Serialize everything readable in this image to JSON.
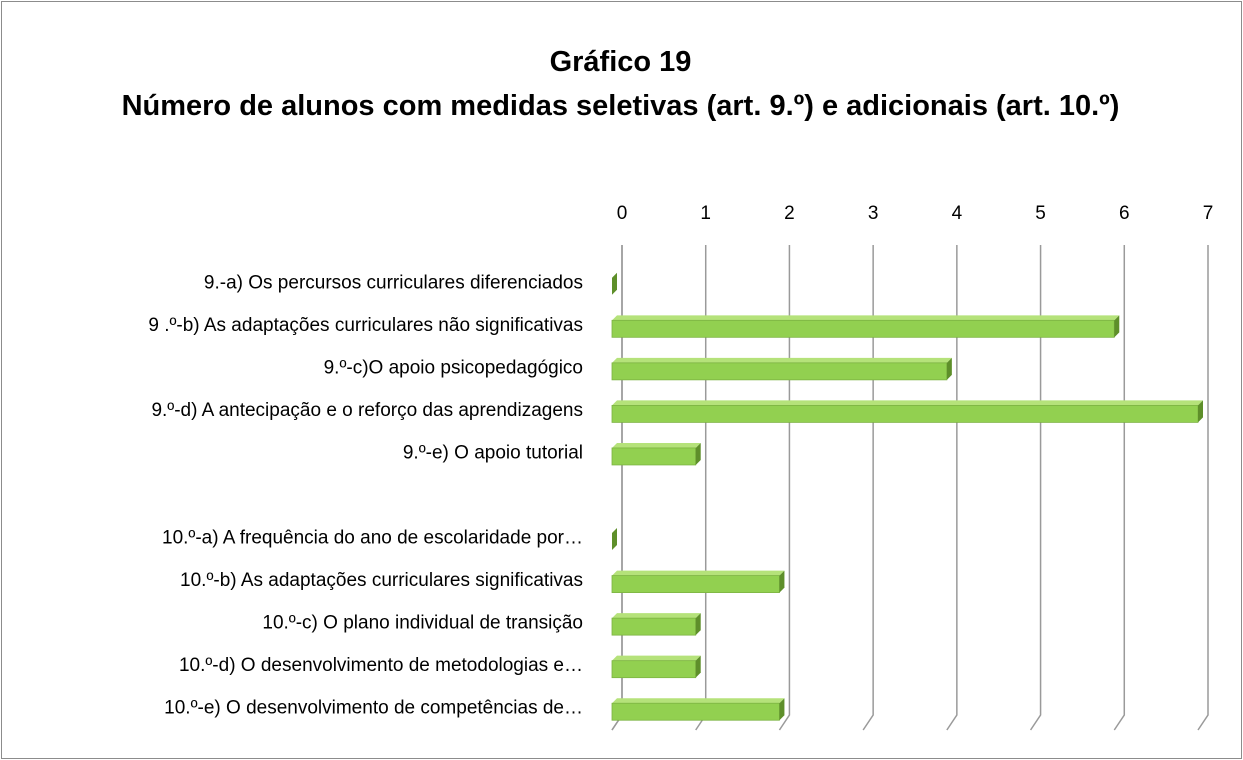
{
  "chart_data": {
    "type": "bar",
    "orientation": "horizontal",
    "title": "Gráfico 19",
    "subtitle": "Número de alunos com medidas seletivas (art. 9.º) e adicionais (art. 10.º)",
    "categories": [
      "9.-a) Os percursos curriculares diferenciados",
      "9 .º-b) As adaptações curriculares não significativas",
      "9.º-c)O apoio psicopedagógico",
      "9.º-d) A antecipação e o reforço das aprendizagens",
      "9.º-e) O apoio tutorial",
      null,
      "10.º-a) A frequência do ano de escolaridade por…",
      "10.º-b) As adaptações curriculares significativas",
      "10.º-c) O plano individual de transição",
      "10.º-d) O desenvolvimento de metodologias e…",
      "10.º-e) O desenvolvimento de competências de…"
    ],
    "values": [
      0,
      6,
      4,
      7,
      1,
      null,
      0,
      2,
      1,
      1,
      2
    ],
    "color": "#92d050",
    "xlim": [
      0,
      7
    ],
    "xticks": [
      0,
      1,
      2,
      3,
      4,
      5,
      6,
      7
    ],
    "grid": true
  }
}
